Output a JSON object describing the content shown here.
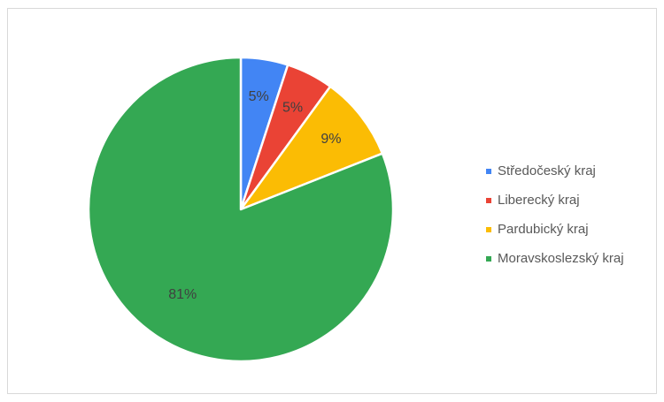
{
  "chart_data": {
    "type": "pie",
    "title": "",
    "start_angle_deg": 0,
    "direction": "clockwise",
    "legend_position": "right",
    "categories": [
      "Středočeský kraj",
      "Liberecký kraj",
      "Pardubický kraj",
      "Moravskoslezský kraj"
    ],
    "values": [
      5,
      5,
      9,
      81
    ],
    "data_labels": [
      "5%",
      "5%",
      "9%",
      "81%"
    ],
    "colors": [
      "#4285f4",
      "#ea4335",
      "#fbbc04",
      "#34a853"
    ],
    "slice_border_color": "#ffffff"
  }
}
